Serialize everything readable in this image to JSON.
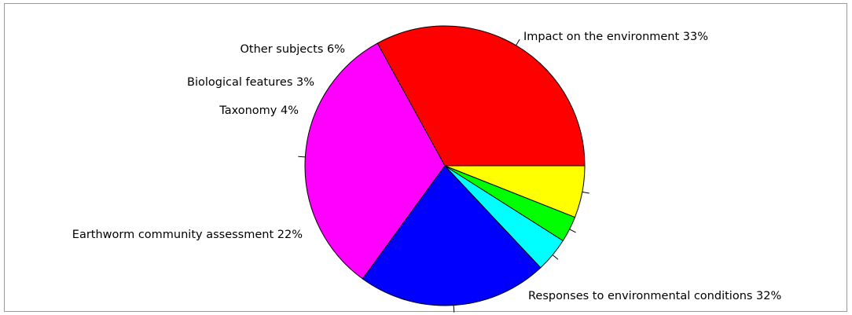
{
  "chart_data": {
    "type": "pie",
    "title": "",
    "slices": [
      {
        "label": "Impact on the environment",
        "value": 33,
        "display": "Impact on the environment 33%",
        "color": "#ff0000"
      },
      {
        "label": "Responses to environmental conditions",
        "value": 32,
        "display": "Responses to environmental conditions 32%",
        "color": "#ff00ff"
      },
      {
        "label": "Earthworm community assessment",
        "value": 22,
        "display": "Earthworm community assessment 22%",
        "color": "#0000ff"
      },
      {
        "label": "Taxonomy",
        "value": 4,
        "display": "Taxonomy 4%",
        "color": "#00ffff"
      },
      {
        "label": "Biological features",
        "value": 3,
        "display": "Biological features 3%",
        "color": "#00ff00"
      },
      {
        "label": "Other subjects",
        "value": 6,
        "display": "Other subjects 6%",
        "color": "#ffff00"
      }
    ],
    "legend": "none",
    "start_angle": "0° (3 o'clock)",
    "direction": "counter-clockwise"
  }
}
